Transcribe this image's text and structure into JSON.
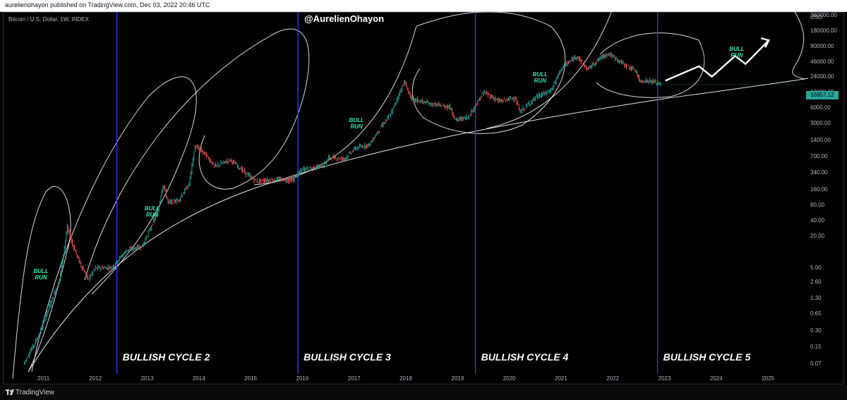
{
  "header": {
    "publish_line": "aurelienohayon published on TradingView.com, Dec 03, 2022 20:46 UTC"
  },
  "footer": {
    "brand": "TradingView"
  },
  "colors": {
    "up_candle": "#26a69a",
    "down_candle": "#ef5350",
    "cycle_line": "#2d3cff",
    "curve": "#ffffff",
    "bull_text": "#2ee6b0",
    "price_badge": "#26a69a"
  },
  "chart_data": {
    "type": "candlestick",
    "symbol_label": "Bitcoin / U.S. Dollar, 1W, INDEX",
    "watermark": "@AurelienOhayon",
    "y_axis": {
      "scale": "log",
      "unit": "USD",
      "ticks": [
        "360000.00",
        "180000.00",
        "90000.00",
        "46000.00",
        "24000.00",
        "12000.00",
        "6000.00",
        "3000.00",
        "1400.00",
        "700.00",
        "340.00",
        "160.00",
        "80.00",
        "40.00",
        "20.00",
        "5.00",
        "2.60",
        "1.30",
        "0.65",
        "0.30",
        "0.15",
        "0.07"
      ]
    },
    "x_axis": {
      "ticks": [
        "2011",
        "2012",
        "2013",
        "2014",
        "2015",
        "2016",
        "2017",
        "2018",
        "2019",
        "2020",
        "2021",
        "2022",
        "2023",
        "2024",
        "2025"
      ]
    },
    "last_price": "16957.12",
    "price_path": [
      {
        "x": 2010.6,
        "y": 0.07
      },
      {
        "x": 2010.9,
        "y": 0.25
      },
      {
        "x": 2011.1,
        "y": 0.9
      },
      {
        "x": 2011.3,
        "y": 3.0
      },
      {
        "x": 2011.45,
        "y": 30
      },
      {
        "x": 2011.55,
        "y": 14
      },
      {
        "x": 2011.7,
        "y": 6
      },
      {
        "x": 2011.85,
        "y": 3
      },
      {
        "x": 2012.0,
        "y": 5
      },
      {
        "x": 2012.3,
        "y": 5
      },
      {
        "x": 2012.6,
        "y": 11
      },
      {
        "x": 2012.9,
        "y": 13
      },
      {
        "x": 2013.2,
        "y": 60
      },
      {
        "x": 2013.3,
        "y": 200
      },
      {
        "x": 2013.4,
        "y": 90
      },
      {
        "x": 2013.6,
        "y": 100
      },
      {
        "x": 2013.8,
        "y": 200
      },
      {
        "x": 2013.92,
        "y": 1100
      },
      {
        "x": 2014.1,
        "y": 800
      },
      {
        "x": 2014.3,
        "y": 450
      },
      {
        "x": 2014.6,
        "y": 600
      },
      {
        "x": 2014.9,
        "y": 330
      },
      {
        "x": 2015.1,
        "y": 230
      },
      {
        "x": 2015.5,
        "y": 250
      },
      {
        "x": 2015.8,
        "y": 240
      },
      {
        "x": 2016.0,
        "y": 400
      },
      {
        "x": 2016.4,
        "y": 450
      },
      {
        "x": 2016.5,
        "y": 680
      },
      {
        "x": 2016.8,
        "y": 620
      },
      {
        "x": 2017.0,
        "y": 980
      },
      {
        "x": 2017.3,
        "y": 1200
      },
      {
        "x": 2017.5,
        "y": 2500
      },
      {
        "x": 2017.7,
        "y": 4500
      },
      {
        "x": 2017.96,
        "y": 19000
      },
      {
        "x": 2018.1,
        "y": 9000
      },
      {
        "x": 2018.5,
        "y": 7000
      },
      {
        "x": 2018.85,
        "y": 6200
      },
      {
        "x": 2018.95,
        "y": 3500
      },
      {
        "x": 2019.2,
        "y": 4000
      },
      {
        "x": 2019.5,
        "y": 12000
      },
      {
        "x": 2019.8,
        "y": 8000
      },
      {
        "x": 2020.1,
        "y": 9500
      },
      {
        "x": 2020.2,
        "y": 5000
      },
      {
        "x": 2020.5,
        "y": 9500
      },
      {
        "x": 2020.8,
        "y": 13000
      },
      {
        "x": 2021.0,
        "y": 35000
      },
      {
        "x": 2021.3,
        "y": 60000
      },
      {
        "x": 2021.5,
        "y": 33000
      },
      {
        "x": 2021.75,
        "y": 55000
      },
      {
        "x": 2021.9,
        "y": 67000
      },
      {
        "x": 2022.2,
        "y": 42000
      },
      {
        "x": 2022.45,
        "y": 30000
      },
      {
        "x": 2022.5,
        "y": 20000
      },
      {
        "x": 2022.75,
        "y": 19500
      },
      {
        "x": 2022.92,
        "y": 16957
      }
    ],
    "cycle_lines": [
      {
        "x": 2012.4,
        "label": "BULLISH CYCLE 2"
      },
      {
        "x": 2015.9,
        "label": "BULLISH CYCLE 3"
      },
      {
        "x": 2019.33,
        "label": "BULLISH CYCLE 4"
      },
      {
        "x": 2022.85,
        "label": "BULLISH CYCLE 5"
      }
    ],
    "annotations": [
      {
        "text": "BULL RUN",
        "x": 2010.95,
        "y": 5
      },
      {
        "text": "BULL RUN",
        "x": 2013.1,
        "y": 80
      },
      {
        "text": "BULL RUN",
        "x": 2017.05,
        "y": 4000
      },
      {
        "text": "BULL RUN",
        "x": 2020.6,
        "y": 30000
      },
      {
        "text": "BULL RUN",
        "x": 2024.4,
        "y": 95000
      }
    ],
    "projection": [
      {
        "x": 2023.0,
        "y": 20000
      },
      {
        "x": 2023.65,
        "y": 38000
      },
      {
        "x": 2023.9,
        "y": 24000
      },
      {
        "x": 2024.35,
        "y": 60000
      },
      {
        "x": 2024.55,
        "y": 42000
      },
      {
        "x": 2025.0,
        "y": 120000
      }
    ]
  }
}
